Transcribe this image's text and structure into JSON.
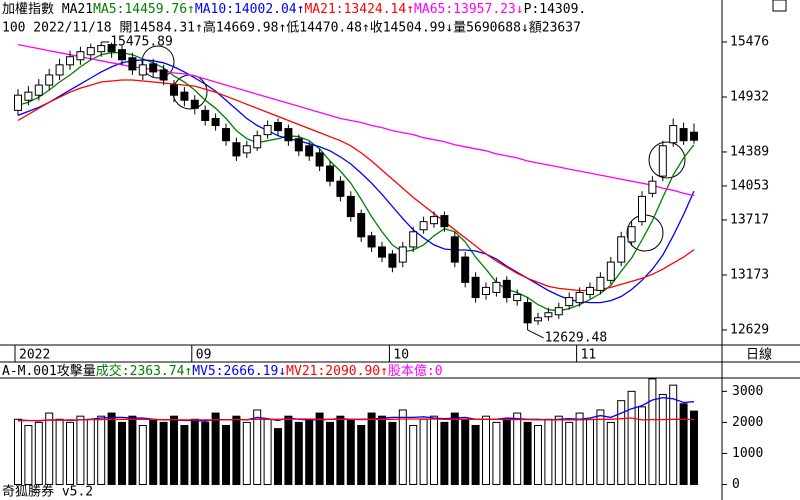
{
  "chart_data": {
    "type": "candlestick",
    "header_line1": [
      {
        "text": "加權指數 MA21",
        "color": "#000000"
      },
      {
        "text": "MA5:14459.76↑",
        "color": "#008000"
      },
      {
        "text": "MA10:14002.04↑",
        "color": "#0000ff"
      },
      {
        "text": "MA21:13424.14↑",
        "color": "#ff0000"
      },
      {
        "text": "MA65:13957.23↓",
        "color": "#ff00ff"
      },
      {
        "text": "P:14309.",
        "color": "#000000"
      }
    ],
    "header_line2": "100 2022/11/18 開14584.31↑高14669.98↑低14470.48↑收14504.99↓量5690688↓額23637",
    "period_label": "日線",
    "footer": "奇狐勝券 v5.2",
    "up_fill": "#ffffff",
    "down_fill": "#000000",
    "categories": [
      "2022",
      null,
      null,
      null,
      null,
      null,
      null,
      null,
      null,
      null,
      null,
      null,
      null,
      null,
      null,
      null,
      null,
      "09",
      null,
      null,
      null,
      null,
      null,
      null,
      null,
      null,
      null,
      null,
      null,
      null,
      null,
      null,
      null,
      null,
      null,
      null,
      "10",
      null,
      null,
      null,
      null,
      null,
      null,
      null,
      null,
      null,
      null,
      null,
      null,
      null,
      null,
      null,
      null,
      null,
      "11",
      null,
      null,
      null,
      null,
      null,
      null,
      null,
      null,
      null,
      null,
      null
    ],
    "open": [
      14800,
      14900,
      14950,
      15050,
      15150,
      15250,
      15300,
      15350,
      15380,
      15450,
      15400,
      15320,
      15150,
      15260,
      15200,
      15050,
      14980,
      14900,
      14800,
      14720,
      14620,
      14480,
      14380,
      14430,
      14560,
      14680,
      14620,
      14520,
      14450,
      14380,
      14250,
      14100,
      13950,
      13780,
      13560,
      13450,
      13380,
      13300,
      13450,
      13620,
      13680,
      13760,
      13550,
      13350,
      13150,
      12980,
      13000,
      13120,
      12920,
      12900,
      12720,
      12760,
      12780,
      12870,
      12900,
      12980,
      13020,
      13120,
      13300,
      13500,
      13700,
      13980,
      14150,
      14480,
      14620,
      14584.31
    ],
    "high": [
      15010,
      15040,
      15110,
      15210,
      15310,
      15390,
      15430,
      15460,
      15475.89,
      15470,
      15440,
      15370,
      15300,
      15310,
      15250,
      15100,
      15030,
      14950,
      14850,
      14770,
      14670,
      14530,
      14500,
      14600,
      14700,
      14720,
      14660,
      14560,
      14490,
      14420,
      14300,
      14150,
      14000,
      13820,
      13600,
      13500,
      13420,
      13500,
      13650,
      13750,
      13800,
      13800,
      13600,
      13400,
      13200,
      13100,
      13150,
      13160,
      13030,
      12950,
      12800,
      12850,
      12900,
      13000,
      13050,
      13100,
      13200,
      13350,
      13600,
      13700,
      14000,
      14150,
      14500,
      14720,
      14680,
      14669.98
    ],
    "low": [
      14750,
      14850,
      14900,
      15000,
      15100,
      15200,
      15250,
      15300,
      15330,
      15320,
      15250,
      15150,
      15100,
      15130,
      15050,
      14880,
      14840,
      14760,
      14650,
      14600,
      14450,
      14300,
      14330,
      14400,
      14520,
      14550,
      14450,
      14350,
      14300,
      14200,
      14050,
      13900,
      13700,
      13500,
      13400,
      13300,
      13200,
      13250,
      13400,
      13580,
      13640,
      13600,
      13250,
      13050,
      12900,
      12930,
      12960,
      12900,
      12870,
      12629.48,
      12680,
      12720,
      12740,
      12830,
      12860,
      12940,
      12980,
      13080,
      13260,
      13460,
      13660,
      13940,
      14100,
      14440,
      14460,
      14470.48
    ],
    "close": [
      14950,
      14980,
      15050,
      15150,
      15250,
      15330,
      15380,
      15420,
      15440,
      15380,
      15300,
      15200,
      15250,
      15180,
      15100,
      14950,
      14900,
      14820,
      14700,
      14650,
      14500,
      14350,
      14450,
      14550,
      14650,
      14600,
      14500,
      14400,
      14350,
      14250,
      14100,
      13950,
      13750,
      13550,
      13450,
      13350,
      13250,
      13450,
      13600,
      13700,
      13750,
      13650,
      13300,
      13100,
      12950,
      13050,
      13100,
      12950,
      12980,
      12700,
      12750,
      12800,
      12850,
      12950,
      13000,
      13050,
      13150,
      13300,
      13550,
      13650,
      13950,
      14100,
      14450,
      14650,
      14500,
      14504.99
    ],
    "lines": [
      {
        "color": "#008000",
        "values": [
          14850,
          14880,
          14930,
          15000,
          15080,
          15150,
          15230,
          15300,
          15350,
          15370,
          15370,
          15350,
          15310,
          15270,
          15220,
          15140,
          15080,
          15000,
          14900,
          14820,
          14720,
          14600,
          14520,
          14480,
          14500,
          14520,
          14550,
          14540,
          14500,
          14420,
          14300,
          14200,
          14080,
          13920,
          13750,
          13600,
          13470,
          13400,
          13420,
          13470,
          13560,
          13630,
          13600,
          13500,
          13350,
          13230,
          13100,
          13030,
          13000,
          12950,
          12880,
          12830,
          12820,
          12840,
          12880,
          12930,
          12990,
          13070,
          13210,
          13340,
          13520,
          13710,
          13940,
          14160,
          14330,
          14459.76
        ]
      },
      {
        "color": "#0000ff",
        "values": [
          14750,
          14790,
          14830,
          14880,
          14940,
          15000,
          15060,
          15120,
          15180,
          15230,
          15270,
          15290,
          15300,
          15290,
          15270,
          15230,
          15180,
          15120,
          15060,
          14990,
          14900,
          14810,
          14720,
          14650,
          14600,
          14550,
          14520,
          14500,
          14470,
          14440,
          14400,
          14340,
          14270,
          14180,
          14080,
          13970,
          13850,
          13730,
          13620,
          13540,
          13470,
          13430,
          13420,
          13420,
          13410,
          13380,
          13330,
          13260,
          13200,
          13140,
          13080,
          13020,
          12970,
          12930,
          12910,
          12900,
          12900,
          12920,
          12960,
          13030,
          13120,
          13230,
          13370,
          13560,
          13770,
          14002.04
        ]
      },
      {
        "color": "#ff0000",
        "values": [
          14700,
          14760,
          14820,
          14880,
          14930,
          14980,
          15020,
          15050,
          15080,
          15090,
          15100,
          15100,
          15090,
          15080,
          15070,
          15060,
          15050,
          15040,
          15010,
          14980,
          14940,
          14900,
          14860,
          14820,
          14780,
          14740,
          14700,
          14660,
          14620,
          14580,
          14540,
          14500,
          14450,
          14380,
          14300,
          14210,
          14120,
          14030,
          13940,
          13860,
          13780,
          13700,
          13620,
          13540,
          13460,
          13380,
          13310,
          13250,
          13190,
          13140,
          13100,
          13060,
          13040,
          13030,
          13020,
          13020,
          13030,
          13050,
          13080,
          13110,
          13140,
          13180,
          13230,
          13290,
          13350,
          13424.14
        ]
      },
      {
        "color": "#ff00ff",
        "values": [
          15450,
          15430,
          15410,
          15390,
          15370,
          15350,
          15330,
          15310,
          15290,
          15270,
          15250,
          15230,
          15220,
          15200,
          15190,
          15170,
          15160,
          15140,
          15110,
          15080,
          15050,
          15020,
          14990,
          14960,
          14930,
          14900,
          14870,
          14840,
          14810,
          14780,
          14750,
          14720,
          14700,
          14680,
          14650,
          14630,
          14600,
          14580,
          14560,
          14530,
          14510,
          14490,
          14460,
          14440,
          14420,
          14400,
          14370,
          14350,
          14330,
          14300,
          14280,
          14260,
          14240,
          14220,
          14200,
          14180,
          14160,
          14140,
          14120,
          14100,
          14080,
          14060,
          14030,
          14010,
          13980,
          13957.23
        ]
      }
    ],
    "ylim": [
      12481,
      15535
    ],
    "yticks": [
      15476,
      14932,
      14389,
      14053,
      13717,
      13173,
      12629
    ],
    "volume": {
      "header": [
        {
          "text": "A-M.001攻擊量",
          "color": "#000000"
        },
        {
          "text": "成交:2363.74↑",
          "color": "#008000"
        },
        {
          "text": "MV5:2666.19↓",
          "color": "#0000ff"
        },
        {
          "text": "MV21:2090.90↑",
          "color": "#ff0000"
        },
        {
          "text": "股本億:0",
          "color": "#ff00ff"
        }
      ],
      "values": [
        2100,
        1900,
        2000,
        2300,
        2100,
        2000,
        2200,
        2100,
        2200,
        2300,
        2000,
        2200,
        1900,
        2100,
        2000,
        2200,
        1900,
        2100,
        2000,
        2300,
        1900,
        2200,
        2000,
        2400,
        2100,
        1800,
        2200,
        2000,
        2100,
        2300,
        2000,
        2200,
        2100,
        1900,
        2300,
        2200,
        2000,
        2400,
        1900,
        2100,
        2200,
        2000,
        2300,
        2100,
        1900,
        2200,
        2000,
        2100,
        2300,
        2000,
        1900,
        2100,
        2200,
        2000,
        2300,
        2100,
        2400,
        2000,
        2700,
        3000,
        2500,
        3400,
        2900,
        3200,
        2600,
        2363.74
      ],
      "lines": [
        {
          "color": "#0000ff",
          "values": [
            2080,
            2060,
            2050,
            2080,
            2080,
            2060,
            2080,
            2100,
            2140,
            2160,
            2160,
            2140,
            2140,
            2100,
            2080,
            2080,
            2060,
            2060,
            2040,
            2100,
            2080,
            2100,
            2080,
            2160,
            2120,
            2060,
            2140,
            2100,
            2080,
            2080,
            2100,
            2120,
            2100,
            2100,
            2100,
            2140,
            2160,
            2160,
            2160,
            2180,
            2140,
            2120,
            2140,
            2160,
            2100,
            2100,
            2100,
            2140,
            2120,
            2100,
            2100,
            2080,
            2100,
            2120,
            2100,
            2140,
            2220,
            2160,
            2300,
            2440,
            2540,
            2720,
            2800,
            2760,
            2640,
            2666.19
          ]
        },
        {
          "color": "#ff0000",
          "values": [
            2050,
            2060,
            2060,
            2070,
            2070,
            2080,
            2080,
            2090,
            2090,
            2100,
            2100,
            2100,
            2100,
            2090,
            2090,
            2090,
            2080,
            2080,
            2080,
            2080,
            2080,
            2090,
            2090,
            2100,
            2100,
            2100,
            2100,
            2110,
            2110,
            2100,
            2100,
            2100,
            2100,
            2090,
            2100,
            2100,
            2100,
            2110,
            2110,
            2110,
            2110,
            2100,
            2100,
            2100,
            2100,
            2100,
            2100,
            2090,
            2090,
            2090,
            2080,
            2080,
            2080,
            2080,
            2080,
            2090,
            2100,
            2100,
            2120,
            2140,
            2080,
            2090,
            2090,
            2100,
            2095,
            2090.9
          ]
        }
      ],
      "ylim": [
        -500,
        3430
      ],
      "yticks": [
        3000,
        2000,
        1000,
        0
      ]
    }
  }
}
